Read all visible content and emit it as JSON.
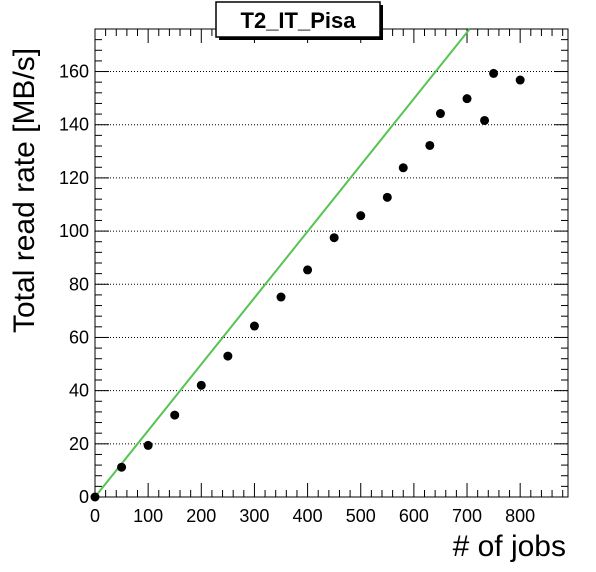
{
  "chart_data": {
    "type": "scatter",
    "title": "T2_IT_Pisa",
    "xlabel": "# of jobs",
    "ylabel": "Total read rate [MB/s]",
    "xlim": [
      0,
      890
    ],
    "ylim": [
      0,
      176
    ],
    "x_ticks": [
      0,
      100,
      200,
      300,
      400,
      500,
      600,
      700,
      800
    ],
    "y_ticks": [
      0,
      20,
      40,
      60,
      80,
      100,
      120,
      140,
      160
    ],
    "grid": "horizontal",
    "series": [
      {
        "marker": "circle",
        "color": "#000000",
        "points": [
          [
            0,
            0
          ],
          [
            50,
            11.2
          ],
          [
            100,
            19.4
          ],
          [
            150,
            30.8
          ],
          [
            200,
            42
          ],
          [
            250,
            53
          ],
          [
            300,
            64.3
          ],
          [
            350,
            75.2
          ],
          [
            400,
            85.4
          ],
          [
            450,
            97.5
          ],
          [
            500,
            105.8
          ],
          [
            550,
            112.7
          ],
          [
            580,
            123.8
          ],
          [
            630,
            132.2
          ],
          [
            650,
            144.2
          ],
          [
            700,
            149.8
          ],
          [
            733,
            141.6
          ],
          [
            750,
            159.3
          ],
          [
            800,
            156.8
          ]
        ]
      }
    ],
    "reference_line": {
      "color": "#55c451",
      "x": [
        0,
        705
      ],
      "y": [
        0,
        176
      ]
    }
  }
}
